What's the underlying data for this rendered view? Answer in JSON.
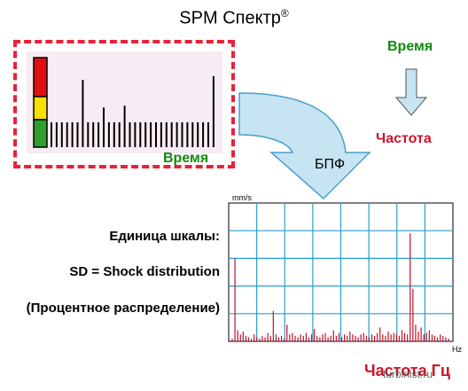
{
  "title": "SPM Спектр",
  "title_mark": "®",
  "labels": {
    "time_inner": "Время",
    "time_right": "Время",
    "freq_right": "Частота",
    "fft": "БПФ",
    "scale_units": "Единица шкалы:",
    "sd": "SD = Shock distribution",
    "percent": "(Процентное распределение)",
    "freq_hz": "Частота Гц"
  },
  "spectrum_axes": {
    "y_unit": "mm/s",
    "x_unit": "Hz"
  },
  "watermark": "turbinist.ru",
  "colors": {
    "dash_border": "#e8213a",
    "panel_bg": "#f7ecf3",
    "arrow_fill": "#c6e4f2",
    "arrow_stroke": "#4aa0d0",
    "grid_line": "#2aa0c8",
    "spectrum_line": "#c0102a",
    "green_label": "#118a11",
    "red_label": "#d0132a",
    "meter_red": "#e01010",
    "meter_yellow": "#f5e000",
    "meter_green": "#2e9e2e"
  },
  "chart_data": [
    {
      "type": "bar",
      "title": "",
      "xlabel": "Время",
      "ylabel": "",
      "description_values": [
        0.27,
        0.27,
        0.27,
        0.27,
        0.27,
        0.27,
        0.73,
        0.27,
        0.27,
        0.27,
        0.43,
        0.27,
        0.27,
        0.27,
        0.45,
        0.27,
        0.27,
        0.27,
        0.27,
        0.27,
        0.27,
        0.27,
        0.27,
        0.27,
        0.27,
        0.27,
        0.27,
        0.27,
        0.27,
        0.27,
        0.27,
        0.77
      ]
    },
    {
      "type": "bar",
      "title": "",
      "xlabel": "Hz",
      "ylabel": "mm/s",
      "ylim": [
        0,
        1
      ],
      "values": [
        0.02,
        0.6,
        0.08,
        0.05,
        0.07,
        0.04,
        0.03,
        0.02,
        0.05,
        0.03,
        0.02,
        0.04,
        0.03,
        0.06,
        0.04,
        0.22,
        0.05,
        0.03,
        0.04,
        0.02,
        0.12,
        0.05,
        0.06,
        0.04,
        0.03,
        0.05,
        0.04,
        0.06,
        0.03,
        0.05,
        0.09,
        0.04,
        0.03,
        0.05,
        0.06,
        0.03,
        0.04,
        0.08,
        0.04,
        0.06,
        0.03,
        0.05,
        0.04,
        0.07,
        0.05,
        0.04,
        0.03,
        0.05,
        0.06,
        0.04,
        0.03,
        0.05,
        0.04,
        0.06,
        0.1,
        0.05,
        0.04,
        0.07,
        0.05,
        0.06,
        0.05,
        0.04,
        0.08,
        0.06,
        0.05,
        0.78,
        0.38,
        0.12,
        0.07,
        0.1,
        0.05,
        0.06,
        0.08,
        0.05,
        0.04,
        0.03,
        0.05,
        0.04,
        0.03,
        0.02
      ]
    }
  ]
}
